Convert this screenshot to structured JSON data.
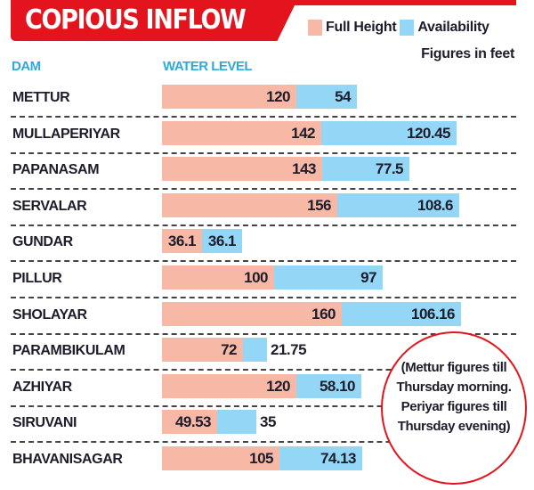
{
  "title": "COPIOUS INFLOW",
  "legend": {
    "full_height_label": "Full Height",
    "availability_label": "Availability",
    "full_height_color": "#f7b8a5",
    "availability_color": "#93d6f5"
  },
  "units_note": "Figures in feet",
  "columns": {
    "dam": "DAM",
    "water_level": "WATER LEVEL"
  },
  "rows": [
    {
      "dam": "METTUR",
      "full": "120",
      "avail": "54"
    },
    {
      "dam": "MULLAPERIYAR",
      "full": "142",
      "avail": "120.45"
    },
    {
      "dam": "PAPANASAM",
      "full": "143",
      "avail": "77.5"
    },
    {
      "dam": "SERVALAR",
      "full": "156",
      "avail": "108.6"
    },
    {
      "dam": "GUNDAR",
      "full": "36.1",
      "avail": "36.1"
    },
    {
      "dam": "PILLUR",
      "full": "100",
      "avail": "97"
    },
    {
      "dam": "SHOLAYAR",
      "full": "160",
      "avail": "106.16"
    },
    {
      "dam": "PARAMBIKULAM",
      "full": "72",
      "avail": "21.75"
    },
    {
      "dam": "AZHIYAR",
      "full": "120",
      "avail": "58.10"
    },
    {
      "dam": "SIRUVANI",
      "full": "49.53",
      "avail": "35"
    },
    {
      "dam": "BHAVANISAGAR",
      "full": "105",
      "avail": "74.13"
    }
  ],
  "note": "(Mettur figures till Thursday morning. Periyar figures till Thursday evening)",
  "chart_data": {
    "type": "bar",
    "orientation": "horizontal",
    "stacked": true,
    "title": "COPIOUS INFLOW",
    "xlabel": "WATER LEVEL",
    "ylabel": "DAM",
    "units": "feet",
    "categories": [
      "METTUR",
      "MULLAPERIYAR",
      "PAPANASAM",
      "SERVALAR",
      "GUNDAR",
      "PILLUR",
      "SHOLAYAR",
      "PARAMBIKULAM",
      "AZHIYAR",
      "SIRUVANI",
      "BHAVANISAGAR"
    ],
    "series": [
      {
        "name": "Full Height",
        "color": "#f7b8a5",
        "values": [
          120,
          142,
          143,
          156,
          36.1,
          100,
          160,
          72,
          120,
          49.53,
          105
        ]
      },
      {
        "name": "Availability",
        "color": "#93d6f5",
        "values": [
          54,
          120.45,
          77.5,
          108.6,
          36.1,
          97,
          106.16,
          21.75,
          58.1,
          35,
          74.13
        ]
      }
    ],
    "legend_position": "top-right",
    "grid": false,
    "annotation": "(Mettur figures till Thursday morning. Periyar figures till Thursday evening)"
  }
}
